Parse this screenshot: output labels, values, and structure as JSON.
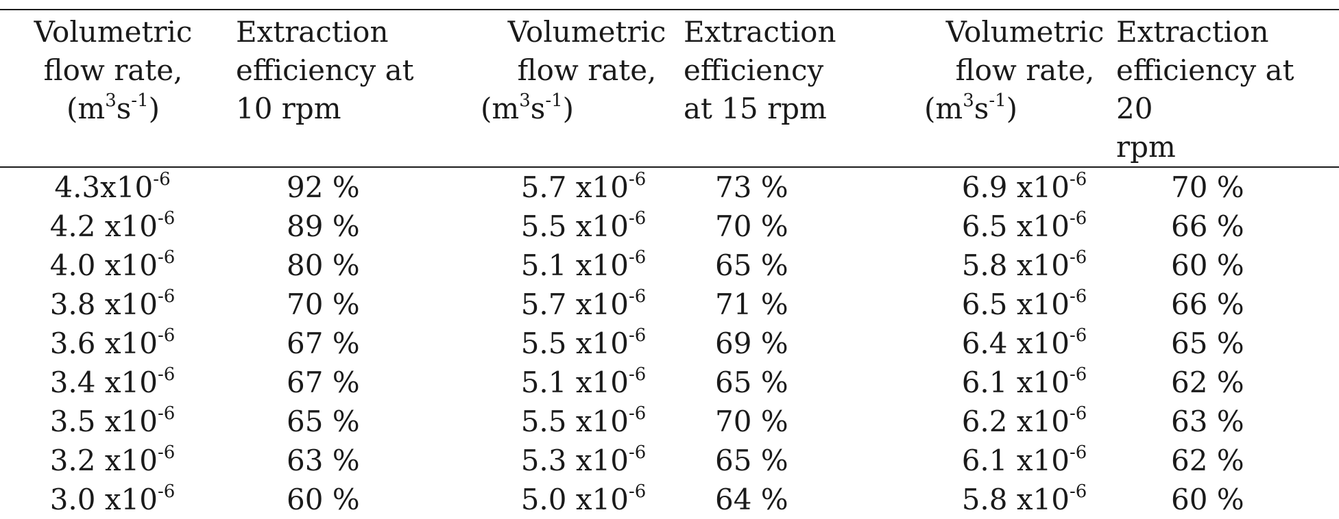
{
  "table": {
    "headers": [
      {
        "lines": [
          "Volumetric",
          "flow rate,"
        ],
        "unit_base": "m",
        "unit_exp1": "3",
        "unit_mid": "s",
        "unit_exp2": "-1"
      },
      {
        "lines": [
          "Extraction",
          "efficiency at",
          "10 rpm"
        ]
      },
      {
        "lines": [
          "Volumetric",
          "flow rate,"
        ],
        "unit_base": "m",
        "unit_exp1": "3",
        "unit_mid": "s",
        "unit_exp2": "-1"
      },
      {
        "lines": [
          "Extraction",
          "efficiency",
          "at 15 rpm"
        ]
      },
      {
        "lines": [
          "Volumetric",
          "flow rate,"
        ],
        "unit_base": "m",
        "unit_exp1": "3",
        "unit_mid": "s",
        "unit_exp2": "-1"
      },
      {
        "lines": [
          "Extraction",
          "efficiency at 20",
          "rpm"
        ]
      }
    ],
    "exponent": "-6",
    "rows": [
      {
        "v10": "4.3x10",
        "e10": "92 %",
        "v15": "5.7 x10",
        "e15": "73 %",
        "v20": "6.9 x10",
        "e20": "70 %"
      },
      {
        "v10": "4.2 x10",
        "e10": "89 %",
        "v15": "5.5 x10",
        "e15": "70 %",
        "v20": "6.5 x10",
        "e20": "66 %"
      },
      {
        "v10": "4.0 x10",
        "e10": "80 %",
        "v15": "5.1 x10",
        "e15": "65 %",
        "v20": "5.8 x10",
        "e20": "60 %"
      },
      {
        "v10": "3.8 x10",
        "e10": "70 %",
        "v15": "5.7 x10",
        "e15": "71 %",
        "v20": "6.5 x10",
        "e20": "66 %"
      },
      {
        "v10": "3.6 x10",
        "e10": "67 %",
        "v15": "5.5 x10",
        "e15": "69 %",
        "v20": "6.4 x10",
        "e20": "65 %"
      },
      {
        "v10": "3.4 x10",
        "e10": "67 %",
        "v15": "5.1 x10",
        "e15": "65 %",
        "v20": "6.1 x10",
        "e20": "62 %"
      },
      {
        "v10": "3.5 x10",
        "e10": "65 %",
        "v15": "5.5 x10",
        "e15": "70 %",
        "v20": "6.2 x10",
        "e20": "63 %"
      },
      {
        "v10": "3.2 x10",
        "e10": "63 %",
        "v15": "5.3 x10",
        "e15": "65 %",
        "v20": "6.1 x10",
        "e20": "62 %"
      },
      {
        "v10": "3.0 x10",
        "e10": "60 %",
        "v15": "5.0 x10",
        "e15": "64 %",
        "v20": "5.8 x10",
        "e20": "60 %"
      }
    ]
  }
}
